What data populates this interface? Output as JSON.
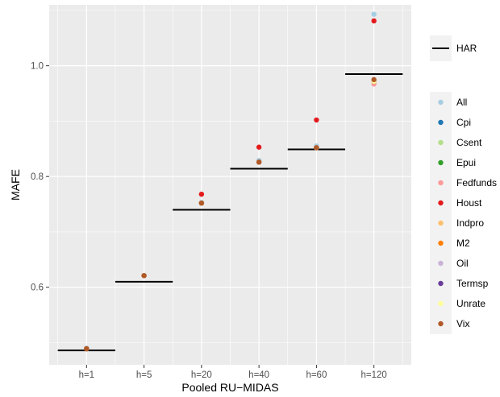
{
  "chart_data": {
    "type": "scatter",
    "xlabel": "Pooled RU−MIDAS",
    "ylabel": "MAFE",
    "categories": [
      "h=1",
      "h=5",
      "h=20",
      "h=40",
      "h=60",
      "h=120"
    ],
    "yticks": [
      "0.6",
      "0.8",
      "1.0"
    ],
    "ytick_values": [
      0.6,
      0.8,
      1.0
    ],
    "ylim": [
      0.46,
      1.11
    ],
    "grid": true,
    "legend_position": "right",
    "har": {
      "name": "HAR",
      "color": "#000000",
      "values": [
        0.486,
        0.61,
        0.74,
        0.814,
        0.849,
        0.985
      ]
    },
    "series": [
      {
        "name": "All",
        "color": "#A6CEE3",
        "values": [
          0.49,
          0.621,
          0.753,
          0.829,
          0.855,
          1.093
        ]
      },
      {
        "name": "Cpi",
        "color": "#1F78B4",
        "values": [
          0.489,
          0.621,
          0.752,
          0.826,
          0.852,
          0.972
        ]
      },
      {
        "name": "Csent",
        "color": "#B2DF8A",
        "values": [
          0.489,
          0.621,
          0.752,
          0.826,
          0.852,
          0.972
        ]
      },
      {
        "name": "Epui",
        "color": "#33A02C",
        "values": [
          0.489,
          0.621,
          0.752,
          0.826,
          0.852,
          0.972
        ]
      },
      {
        "name": "Fedfunds",
        "color": "#FB9A99",
        "values": [
          0.489,
          0.621,
          0.752,
          0.826,
          0.852,
          0.967
        ]
      },
      {
        "name": "Houst",
        "color": "#E31A1C",
        "values": [
          0.489,
          0.621,
          0.768,
          0.853,
          0.902,
          1.081
        ]
      },
      {
        "name": "Indpro",
        "color": "#FDBF6F",
        "values": [
          0.489,
          0.621,
          0.752,
          0.826,
          0.852,
          0.972
        ]
      },
      {
        "name": "M2",
        "color": "#FF7F00",
        "values": [
          0.489,
          0.621,
          0.752,
          0.826,
          0.852,
          0.972
        ]
      },
      {
        "name": "Oil",
        "color": "#CAB2D6",
        "values": [
          0.489,
          0.621,
          0.752,
          0.826,
          0.852,
          0.972
        ]
      },
      {
        "name": "Termsp",
        "color": "#6A3D9A",
        "values": [
          0.489,
          0.621,
          0.752,
          0.826,
          0.852,
          0.972
        ]
      },
      {
        "name": "Unrate",
        "color": "#FFFF99",
        "values": [
          0.489,
          0.621,
          0.752,
          0.826,
          0.852,
          0.972
        ]
      },
      {
        "name": "Vix",
        "color": "#B15928",
        "values": [
          0.489,
          0.621,
          0.752,
          0.826,
          0.852,
          0.975
        ]
      }
    ]
  }
}
